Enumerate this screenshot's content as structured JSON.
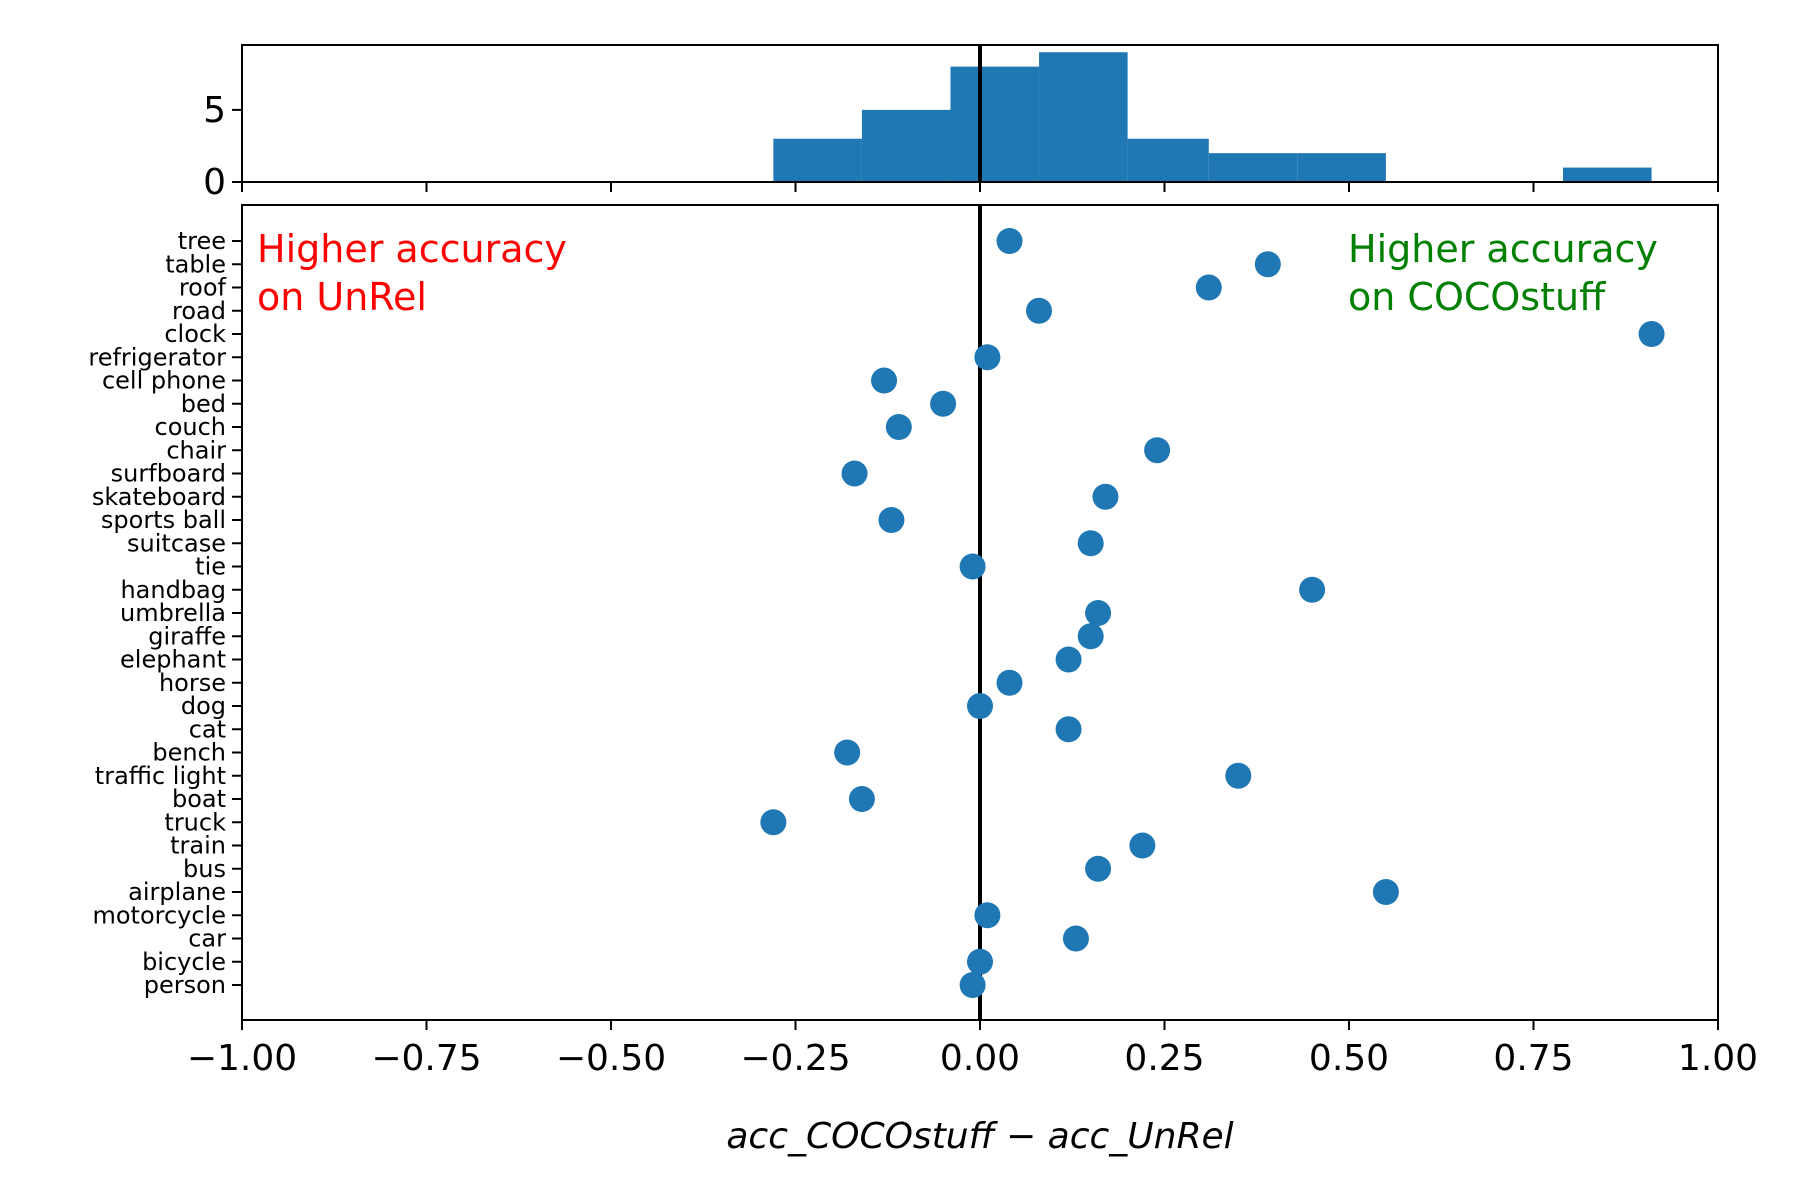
{
  "chart_data": [
    {
      "type": "histogram",
      "bins": [
        {
          "x0": -0.28,
          "x1": -0.16,
          "count": 3
        },
        {
          "x0": -0.16,
          "x1": -0.04,
          "count": 5
        },
        {
          "x0": -0.04,
          "x1": 0.08,
          "count": 8
        },
        {
          "x0": 0.08,
          "x1": 0.2,
          "count": 9
        },
        {
          "x0": 0.2,
          "x1": 0.31,
          "count": 3
        },
        {
          "x0": 0.31,
          "x1": 0.43,
          "count": 2
        },
        {
          "x0": 0.43,
          "x1": 0.55,
          "count": 2
        },
        {
          "x0": 0.55,
          "x1": 0.67,
          "count": 0
        },
        {
          "x0": 0.67,
          "x1": 0.79,
          "count": 0
        },
        {
          "x0": 0.79,
          "x1": 0.91,
          "count": 1
        }
      ],
      "xlim": [
        -1.0,
        1.0
      ],
      "ylim": [
        0,
        9.5
      ],
      "yticks": [
        0,
        5
      ],
      "color": "#1f77b4"
    },
    {
      "type": "scatter",
      "categories": [
        "tree",
        "table",
        "roof",
        "road",
        "clock",
        "refrigerator",
        "cell phone",
        "bed",
        "couch",
        "chair",
        "surfboard",
        "skateboard",
        "sports ball",
        "suitcase",
        "tie",
        "handbag",
        "umbrella",
        "giraffe",
        "elephant",
        "horse",
        "dog",
        "cat",
        "bench",
        "traffic light",
        "boat",
        "truck",
        "train",
        "bus",
        "airplane",
        "motorcycle",
        "car",
        "bicycle",
        "person"
      ],
      "values": [
        0.04,
        0.39,
        0.31,
        0.08,
        0.91,
        0.01,
        -0.13,
        -0.05,
        -0.11,
        0.24,
        -0.17,
        0.17,
        -0.12,
        0.15,
        -0.01,
        0.45,
        0.16,
        0.15,
        0.12,
        0.04,
        0.0,
        0.12,
        -0.18,
        0.35,
        -0.16,
        -0.28,
        0.22,
        0.16,
        0.55,
        0.01,
        0.13,
        0.0,
        -0.01
      ],
      "xlim": [
        -1.0,
        1.0
      ],
      "xticks": [
        "−1.00",
        "−0.75",
        "−0.50",
        "−0.25",
        "0.00",
        "0.25",
        "0.50",
        "0.75",
        "1.00"
      ],
      "xlabel": "acc_COCOstuff − acc_UnRel",
      "vline": 0,
      "annotations": {
        "left_line1": "Higher accuracy",
        "left_line2": "on UnRel",
        "right_line1": "Higher accuracy",
        "right_line2": "on COCOstuff"
      },
      "colors": {
        "points": "#1f77b4",
        "left_annotation": "#ff0000",
        "right_annotation": "#008000",
        "vline": "#000000"
      }
    }
  ]
}
